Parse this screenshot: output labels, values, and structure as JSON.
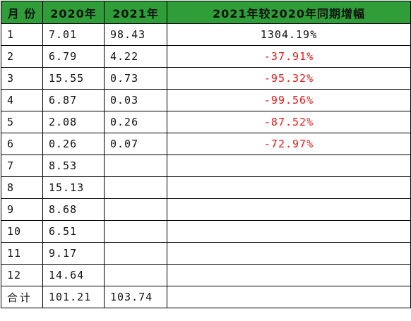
{
  "table": {
    "headers": [
      "月 份",
      "2020年",
      "2021年",
      "2021年较2020年同期增幅"
    ],
    "rows": [
      {
        "month": "1",
        "y2020": "7.01",
        "y2021": "98.43",
        "change": "1304.19%",
        "negative": false
      },
      {
        "month": "2",
        "y2020": "6.79",
        "y2021": "4.22",
        "change": "-37.91%",
        "negative": true
      },
      {
        "month": "3",
        "y2020": "15.55",
        "y2021": "0.73",
        "change": "-95.32%",
        "negative": true
      },
      {
        "month": "4",
        "y2020": "6.87",
        "y2021": "0.03",
        "change": "-99.56%",
        "negative": true
      },
      {
        "month": "5",
        "y2020": "2.08",
        "y2021": "0.26",
        "change": "-87.52%",
        "negative": true
      },
      {
        "month": "6",
        "y2020": "0.26",
        "y2021": "0.07",
        "change": "-72.97%",
        "negative": true
      },
      {
        "month": "7",
        "y2020": "8.53",
        "y2021": "",
        "change": "",
        "negative": false
      },
      {
        "month": "8",
        "y2020": "15.13",
        "y2021": "",
        "change": "",
        "negative": false
      },
      {
        "month": "9",
        "y2020": "8.68",
        "y2021": "",
        "change": "",
        "negative": false
      },
      {
        "month": "10",
        "y2020": "6.51",
        "y2021": "",
        "change": "",
        "negative": false
      },
      {
        "month": "11",
        "y2020": "9.17",
        "y2021": "",
        "change": "",
        "negative": false
      },
      {
        "month": "12",
        "y2020": "14.64",
        "y2021": "",
        "change": "",
        "negative": false
      }
    ],
    "total": {
      "label": "合计",
      "y2020": "101.21",
      "y2021": "103.74",
      "change": ""
    }
  },
  "colors": {
    "header_background": "#2f9e38",
    "negative_text": "#e01919",
    "border": "#000000"
  }
}
